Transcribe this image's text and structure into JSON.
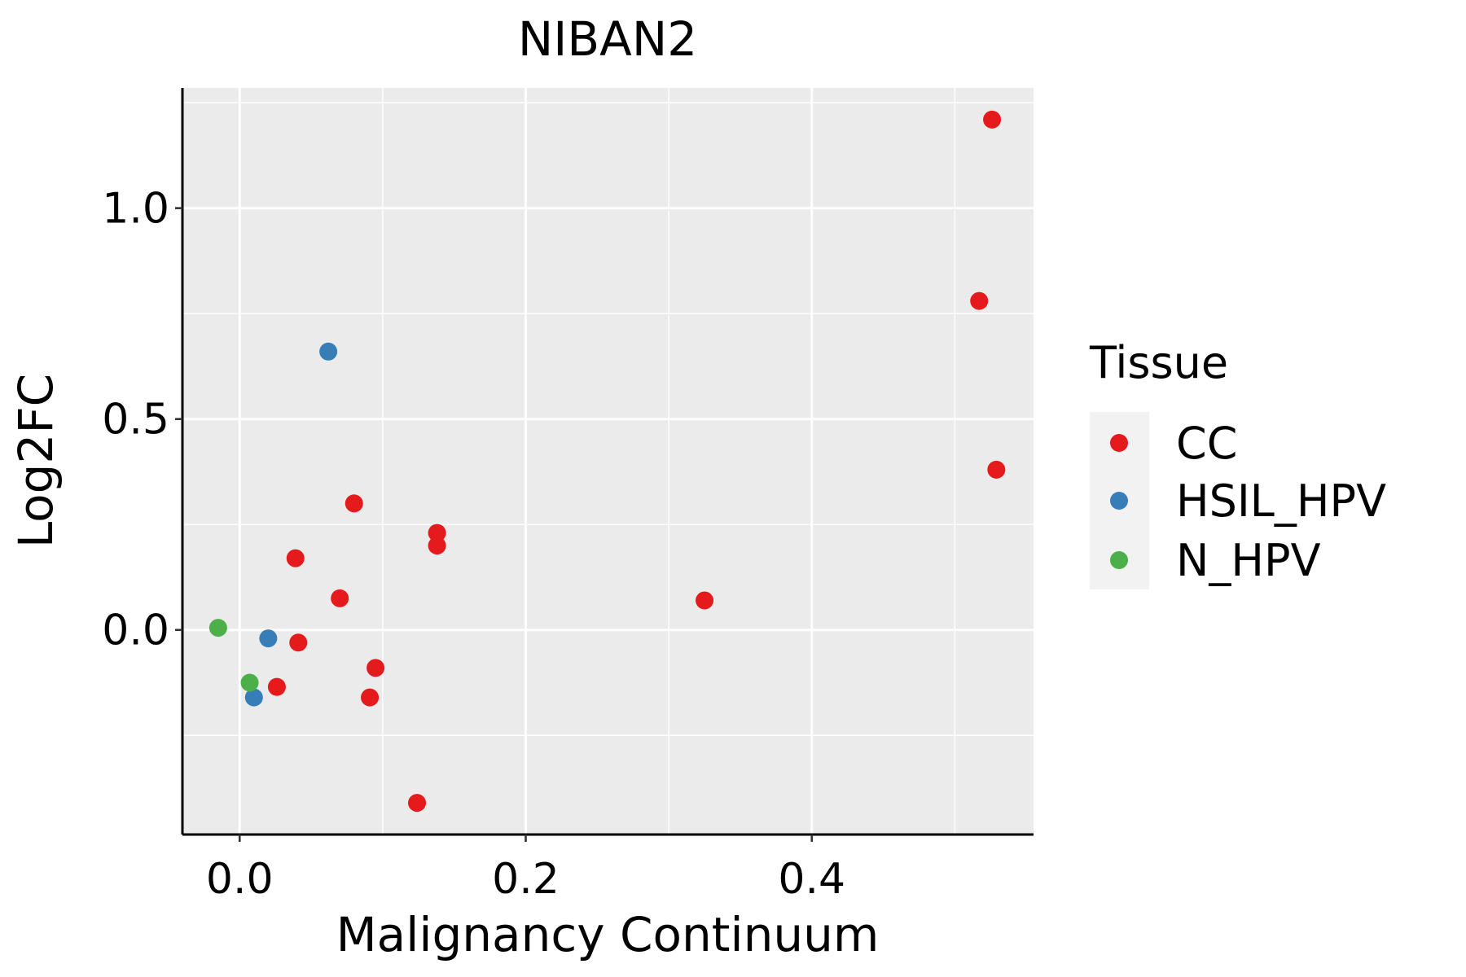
{
  "chart_data": {
    "type": "scatter",
    "title": "NIBAN2",
    "xlabel": "Malignancy Continuum",
    "ylabel": "Log2FC",
    "xlim": [
      -0.04,
      0.555
    ],
    "ylim": [
      -0.485,
      1.285
    ],
    "x_ticks": [
      0.0,
      0.2,
      0.4
    ],
    "x_tick_labels": [
      "0.0",
      "0.2",
      "0.4"
    ],
    "x_minor_ticks": [
      0.1,
      0.3,
      0.5
    ],
    "y_ticks": [
      0.0,
      0.5,
      1.0
    ],
    "y_tick_labels": [
      "0.0",
      "0.5",
      "1.0"
    ],
    "y_minor_ticks": [
      -0.25,
      0.25,
      0.75,
      1.25
    ],
    "grid": true,
    "legend": {
      "title": "Tissue",
      "placement": "right"
    },
    "series": [
      {
        "name": "CC",
        "color": "#e41a1c",
        "points": [
          {
            "x": 0.526,
            "y": 1.21
          },
          {
            "x": 0.517,
            "y": 0.78
          },
          {
            "x": 0.529,
            "y": 0.38
          },
          {
            "x": 0.325,
            "y": 0.07
          },
          {
            "x": 0.08,
            "y": 0.3
          },
          {
            "x": 0.138,
            "y": 0.23
          },
          {
            "x": 0.138,
            "y": 0.2
          },
          {
            "x": 0.039,
            "y": 0.17
          },
          {
            "x": 0.07,
            "y": 0.075
          },
          {
            "x": 0.041,
            "y": -0.03
          },
          {
            "x": 0.095,
            "y": -0.09
          },
          {
            "x": 0.026,
            "y": -0.135
          },
          {
            "x": 0.091,
            "y": -0.16
          },
          {
            "x": 0.124,
            "y": -0.41
          }
        ]
      },
      {
        "name": "HSIL_HPV",
        "color": "#377eb8",
        "points": [
          {
            "x": 0.062,
            "y": 0.66
          },
          {
            "x": 0.02,
            "y": -0.02
          },
          {
            "x": 0.01,
            "y": -0.16
          }
        ]
      },
      {
        "name": "N_HPV",
        "color": "#4daf4a",
        "points": [
          {
            "x": -0.015,
            "y": 0.005
          },
          {
            "x": 0.007,
            "y": -0.125
          }
        ]
      }
    ]
  }
}
